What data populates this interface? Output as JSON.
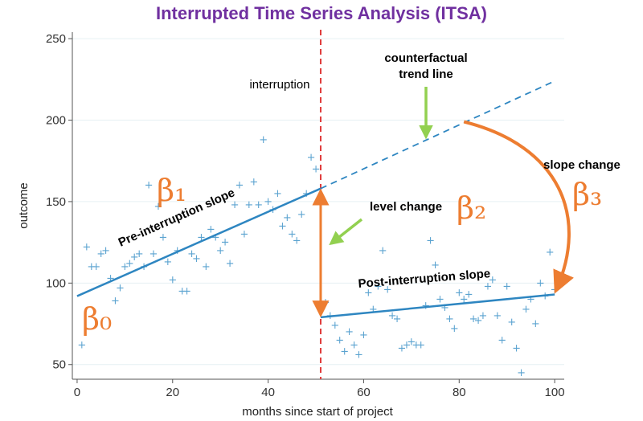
{
  "chart_data": {
    "type": "scatter",
    "title": "Interrupted Time Series Analysis (ITSA)",
    "xlabel": "months since start of project",
    "ylabel": "outcome",
    "xlim": [
      -1,
      102
    ],
    "ylim": [
      41,
      254
    ],
    "xticks": [
      0,
      20,
      40,
      60,
      80,
      100
    ],
    "yticks": [
      50,
      100,
      150,
      200,
      250
    ],
    "grid": true,
    "interruption_x": 51,
    "points": [
      [
        1,
        62
      ],
      [
        2,
        122
      ],
      [
        3,
        110
      ],
      [
        4,
        110
      ],
      [
        5,
        118
      ],
      [
        6,
        120
      ],
      [
        7,
        103
      ],
      [
        8,
        89
      ],
      [
        9,
        97
      ],
      [
        10,
        110
      ],
      [
        11,
        112
      ],
      [
        12,
        116
      ],
      [
        13,
        118
      ],
      [
        14,
        110
      ],
      [
        15,
        160
      ],
      [
        16,
        118
      ],
      [
        17,
        147
      ],
      [
        18,
        128
      ],
      [
        19,
        113
      ],
      [
        20,
        102
      ],
      [
        21,
        120
      ],
      [
        22,
        95
      ],
      [
        23,
        95
      ],
      [
        24,
        118
      ],
      [
        25,
        115
      ],
      [
        26,
        128
      ],
      [
        27,
        110
      ],
      [
        28,
        133
      ],
      [
        29,
        128
      ],
      [
        30,
        120
      ],
      [
        31,
        125
      ],
      [
        32,
        112
      ],
      [
        33,
        148
      ],
      [
        34,
        160
      ],
      [
        35,
        130
      ],
      [
        36,
        148
      ],
      [
        37,
        162
      ],
      [
        38,
        148
      ],
      [
        39,
        188
      ],
      [
        40,
        150
      ],
      [
        41,
        145
      ],
      [
        42,
        155
      ],
      [
        43,
        135
      ],
      [
        44,
        140
      ],
      [
        45,
        130
      ],
      [
        46,
        126
      ],
      [
        47,
        142
      ],
      [
        48,
        155
      ],
      [
        49,
        177
      ],
      [
        50,
        170
      ],
      [
        52,
        88
      ],
      [
        53,
        80
      ],
      [
        54,
        74
      ],
      [
        55,
        65
      ],
      [
        56,
        58
      ],
      [
        57,
        70
      ],
      [
        58,
        62
      ],
      [
        59,
        56
      ],
      [
        60,
        68
      ],
      [
        61,
        94
      ],
      [
        62,
        84
      ],
      [
        63,
        98
      ],
      [
        64,
        120
      ],
      [
        65,
        96
      ],
      [
        66,
        80
      ],
      [
        67,
        78
      ],
      [
        68,
        60
      ],
      [
        69,
        62
      ],
      [
        70,
        64
      ],
      [
        71,
        62
      ],
      [
        72,
        62
      ],
      [
        73,
        86
      ],
      [
        74,
        126
      ],
      [
        75,
        111
      ],
      [
        76,
        90
      ],
      [
        77,
        85
      ],
      [
        78,
        78
      ],
      [
        79,
        72
      ],
      [
        80,
        94
      ],
      [
        81,
        90
      ],
      [
        82,
        93
      ],
      [
        83,
        78
      ],
      [
        84,
        77
      ],
      [
        85,
        80
      ],
      [
        86,
        98
      ],
      [
        87,
        102
      ],
      [
        88,
        80
      ],
      [
        89,
        65
      ],
      [
        90,
        98
      ],
      [
        91,
        76
      ],
      [
        92,
        60
      ],
      [
        93,
        45
      ],
      [
        94,
        84
      ],
      [
        95,
        90
      ],
      [
        96,
        75
      ],
      [
        97,
        100
      ],
      [
        98,
        92
      ],
      [
        99,
        119
      ],
      [
        100,
        96
      ]
    ],
    "pre_trend": {
      "x": [
        0,
        51
      ],
      "y": [
        92,
        158
      ]
    },
    "counterfactual": {
      "x": [
        51,
        100
      ],
      "y": [
        158,
        224
      ]
    },
    "post_trend": {
      "x": [
        51,
        100
      ],
      "y": [
        79,
        93
      ]
    },
    "level_change_arrow": {
      "x": 51,
      "from": 79,
      "to": 158
    },
    "annotations": {
      "interruption": "interruption",
      "counterfactual_line1": "counterfactual",
      "counterfactual_line2": "trend line",
      "pre_slope": "Pre-interruption slope",
      "post_slope": "Post-interruption slope",
      "level_change": "level change",
      "slope_change": "slope change",
      "beta0": "β₀",
      "beta1": "β₁",
      "beta2": "β₂",
      "beta3": "β₃"
    }
  },
  "colors": {
    "title": "#7030a0",
    "points": "#5ba3d0",
    "trend": "#2e86c1",
    "interruption": "#e03c3c",
    "orange": "#ed7d31",
    "green": "#92d050",
    "grid": "#e6f0f3"
  }
}
